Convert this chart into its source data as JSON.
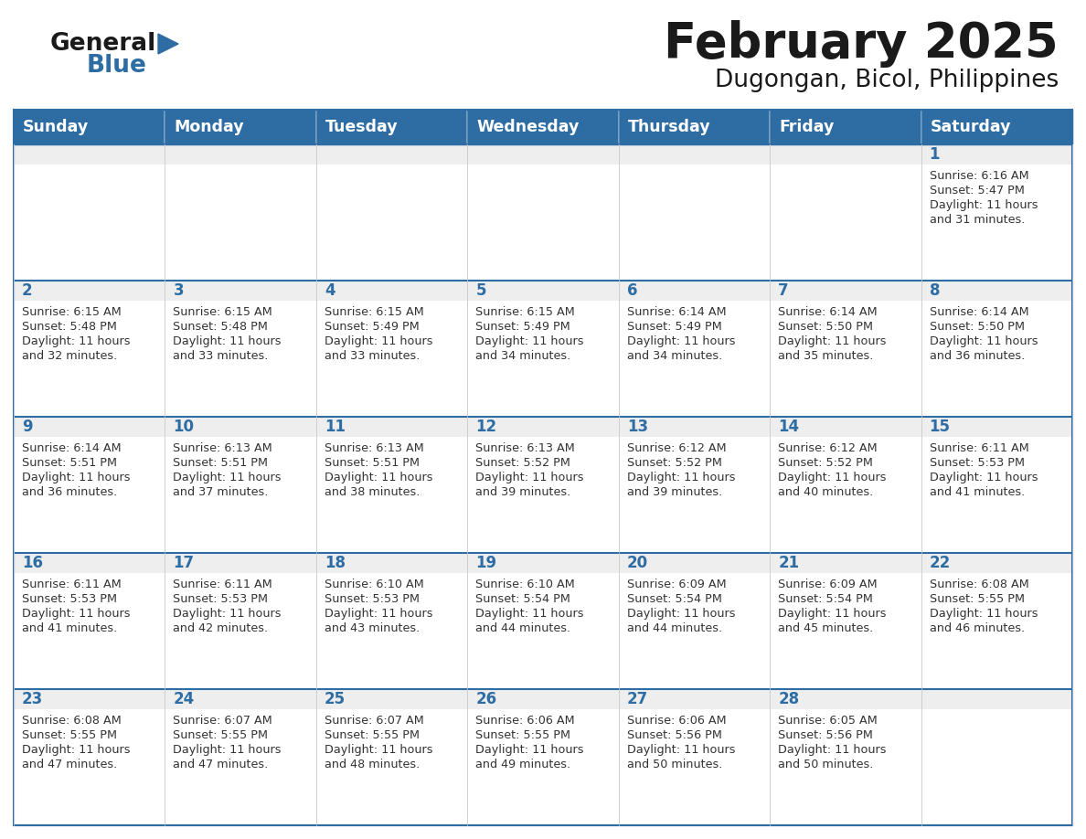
{
  "title": "February 2025",
  "subtitle": "Dugongan, Bicol, Philippines",
  "days_of_week": [
    "Sunday",
    "Monday",
    "Tuesday",
    "Wednesday",
    "Thursday",
    "Friday",
    "Saturday"
  ],
  "header_bg": "#2E6DA4",
  "header_text": "#FFFFFF",
  "cell_bg": "#FFFFFF",
  "cell_top_strip": "#EEEEEE",
  "border_color": "#2E6DA4",
  "cell_border_color": "#CCCCCC",
  "text_color": "#333333",
  "day_number_color": "#2E6DA4",
  "title_color": "#1a1a1a",
  "logo_general_color": "#1a1a1a",
  "logo_blue_color": "#2E6DA4",
  "calendar_data": [
    [
      null,
      null,
      null,
      null,
      null,
      null,
      {
        "day": 1,
        "sunrise": "6:16 AM",
        "sunset": "5:47 PM",
        "daylight": "11 hours and 31 minutes."
      }
    ],
    [
      {
        "day": 2,
        "sunrise": "6:15 AM",
        "sunset": "5:48 PM",
        "daylight": "11 hours and 32 minutes."
      },
      {
        "day": 3,
        "sunrise": "6:15 AM",
        "sunset": "5:48 PM",
        "daylight": "11 hours and 33 minutes."
      },
      {
        "day": 4,
        "sunrise": "6:15 AM",
        "sunset": "5:49 PM",
        "daylight": "11 hours and 33 minutes."
      },
      {
        "day": 5,
        "sunrise": "6:15 AM",
        "sunset": "5:49 PM",
        "daylight": "11 hours and 34 minutes."
      },
      {
        "day": 6,
        "sunrise": "6:14 AM",
        "sunset": "5:49 PM",
        "daylight": "11 hours and 34 minutes."
      },
      {
        "day": 7,
        "sunrise": "6:14 AM",
        "sunset": "5:50 PM",
        "daylight": "11 hours and 35 minutes."
      },
      {
        "day": 8,
        "sunrise": "6:14 AM",
        "sunset": "5:50 PM",
        "daylight": "11 hours and 36 minutes."
      }
    ],
    [
      {
        "day": 9,
        "sunrise": "6:14 AM",
        "sunset": "5:51 PM",
        "daylight": "11 hours and 36 minutes."
      },
      {
        "day": 10,
        "sunrise": "6:13 AM",
        "sunset": "5:51 PM",
        "daylight": "11 hours and 37 minutes."
      },
      {
        "day": 11,
        "sunrise": "6:13 AM",
        "sunset": "5:51 PM",
        "daylight": "11 hours and 38 minutes."
      },
      {
        "day": 12,
        "sunrise": "6:13 AM",
        "sunset": "5:52 PM",
        "daylight": "11 hours and 39 minutes."
      },
      {
        "day": 13,
        "sunrise": "6:12 AM",
        "sunset": "5:52 PM",
        "daylight": "11 hours and 39 minutes."
      },
      {
        "day": 14,
        "sunrise": "6:12 AM",
        "sunset": "5:52 PM",
        "daylight": "11 hours and 40 minutes."
      },
      {
        "day": 15,
        "sunrise": "6:11 AM",
        "sunset": "5:53 PM",
        "daylight": "11 hours and 41 minutes."
      }
    ],
    [
      {
        "day": 16,
        "sunrise": "6:11 AM",
        "sunset": "5:53 PM",
        "daylight": "11 hours and 41 minutes."
      },
      {
        "day": 17,
        "sunrise": "6:11 AM",
        "sunset": "5:53 PM",
        "daylight": "11 hours and 42 minutes."
      },
      {
        "day": 18,
        "sunrise": "6:10 AM",
        "sunset": "5:53 PM",
        "daylight": "11 hours and 43 minutes."
      },
      {
        "day": 19,
        "sunrise": "6:10 AM",
        "sunset": "5:54 PM",
        "daylight": "11 hours and 44 minutes."
      },
      {
        "day": 20,
        "sunrise": "6:09 AM",
        "sunset": "5:54 PM",
        "daylight": "11 hours and 44 minutes."
      },
      {
        "day": 21,
        "sunrise": "6:09 AM",
        "sunset": "5:54 PM",
        "daylight": "11 hours and 45 minutes."
      },
      {
        "day": 22,
        "sunrise": "6:08 AM",
        "sunset": "5:55 PM",
        "daylight": "11 hours and 46 minutes."
      }
    ],
    [
      {
        "day": 23,
        "sunrise": "6:08 AM",
        "sunset": "5:55 PM",
        "daylight": "11 hours and 47 minutes."
      },
      {
        "day": 24,
        "sunrise": "6:07 AM",
        "sunset": "5:55 PM",
        "daylight": "11 hours and 47 minutes."
      },
      {
        "day": 25,
        "sunrise": "6:07 AM",
        "sunset": "5:55 PM",
        "daylight": "11 hours and 48 minutes."
      },
      {
        "day": 26,
        "sunrise": "6:06 AM",
        "sunset": "5:55 PM",
        "daylight": "11 hours and 49 minutes."
      },
      {
        "day": 27,
        "sunrise": "6:06 AM",
        "sunset": "5:56 PM",
        "daylight": "11 hours and 50 minutes."
      },
      {
        "day": 28,
        "sunrise": "6:05 AM",
        "sunset": "5:56 PM",
        "daylight": "11 hours and 50 minutes."
      },
      null
    ]
  ],
  "figsize": [
    11.88,
    9.18
  ],
  "dpi": 100
}
